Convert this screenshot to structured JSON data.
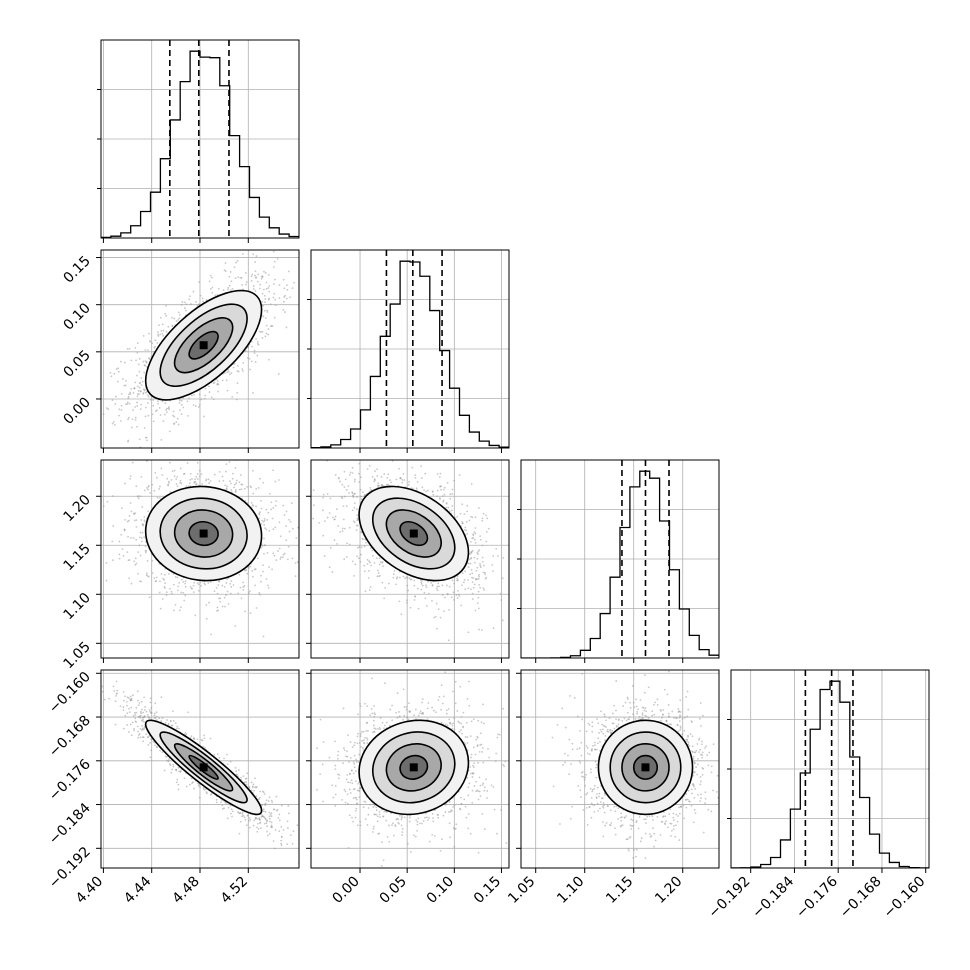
{
  "chart_data": {
    "type": "corner",
    "description": "",
    "parameters": [
      {
        "label": "",
        "range": [
          4.398,
          4.562
        ],
        "ticks": [
          "4.40",
          "4.44",
          "4.48",
          "4.52"
        ],
        "tick_values": [
          4.4,
          4.44,
          4.48,
          4.52
        ],
        "mean": 4.483,
        "std": 0.024,
        "quantiles": [
          4.455,
          4.479,
          4.504
        ]
      },
      {
        "label": "",
        "range": [
          -0.052,
          0.158
        ],
        "ticks": [
          "0.00",
          "0.05",
          "0.10",
          "0.15"
        ],
        "tick_values": [
          0.0,
          0.05,
          0.1,
          0.15
        ],
        "mean": 0.057,
        "std": 0.029,
        "quantiles": [
          0.028,
          0.056,
          0.087
        ]
      },
      {
        "label": "",
        "range": [
          1.035,
          1.237
        ],
        "ticks": [
          "1.05",
          "1.10",
          "1.15",
          "1.20"
        ],
        "tick_values": [
          1.05,
          1.1,
          1.15,
          1.2
        ],
        "mean": 1.162,
        "std": 0.024,
        "quantiles": [
          1.138,
          1.162,
          1.186
        ]
      },
      {
        "label": "",
        "range": [
          -0.1956,
          -0.1594
        ],
        "ticks": [
          "−0.192",
          "−0.184",
          "−0.176",
          "−0.168",
          "−0.160"
        ],
        "tick_values": [
          -0.192,
          -0.184,
          -0.176,
          -0.168,
          -0.16
        ],
        "mean": -0.1772,
        "std": 0.0043,
        "quantiles": [
          -0.182,
          -0.1772,
          -0.1733
        ]
      }
    ],
    "correlations": {
      "1-0": 0.65,
      "2-0": -0.05,
      "2-1": -0.4,
      "3-0": -0.92,
      "3-1": 0.1,
      "3-2": 0.0
    },
    "contour_levels": [
      0.5,
      1.0,
      1.5,
      2.0
    ],
    "grid": true,
    "legend": "none"
  }
}
